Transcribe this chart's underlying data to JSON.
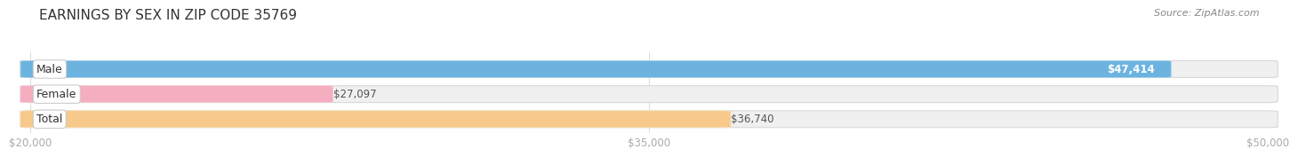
{
  "title": "EARNINGS BY SEX IN ZIP CODE 35769",
  "source": "Source: ZipAtlas.com",
  "categories": [
    "Male",
    "Female",
    "Total"
  ],
  "values": [
    47414,
    27097,
    36740
  ],
  "bar_colors": [
    "#6db3e0",
    "#f5adc0",
    "#f7c98a"
  ],
  "bar_edge_colors": [
    "#aed4ee",
    "#f9cdd8",
    "#fbe3b8"
  ],
  "value_labels": [
    "$47,414",
    "$27,097",
    "$36,740"
  ],
  "value_label_colors": [
    "white",
    "#555555",
    "#555555"
  ],
  "value_label_inside": [
    true,
    false,
    false
  ],
  "xmin": 20000,
  "xmax": 50000,
  "xticks": [
    20000,
    35000,
    50000
  ],
  "xtick_labels": [
    "$20,000",
    "$35,000",
    "$50,000"
  ],
  "background_color": "#ffffff",
  "bar_bg_color": "#f0f0f0",
  "title_fontsize": 11,
  "label_fontsize": 9,
  "value_fontsize": 8.5,
  "figwidth": 14.06,
  "figheight": 1.95
}
